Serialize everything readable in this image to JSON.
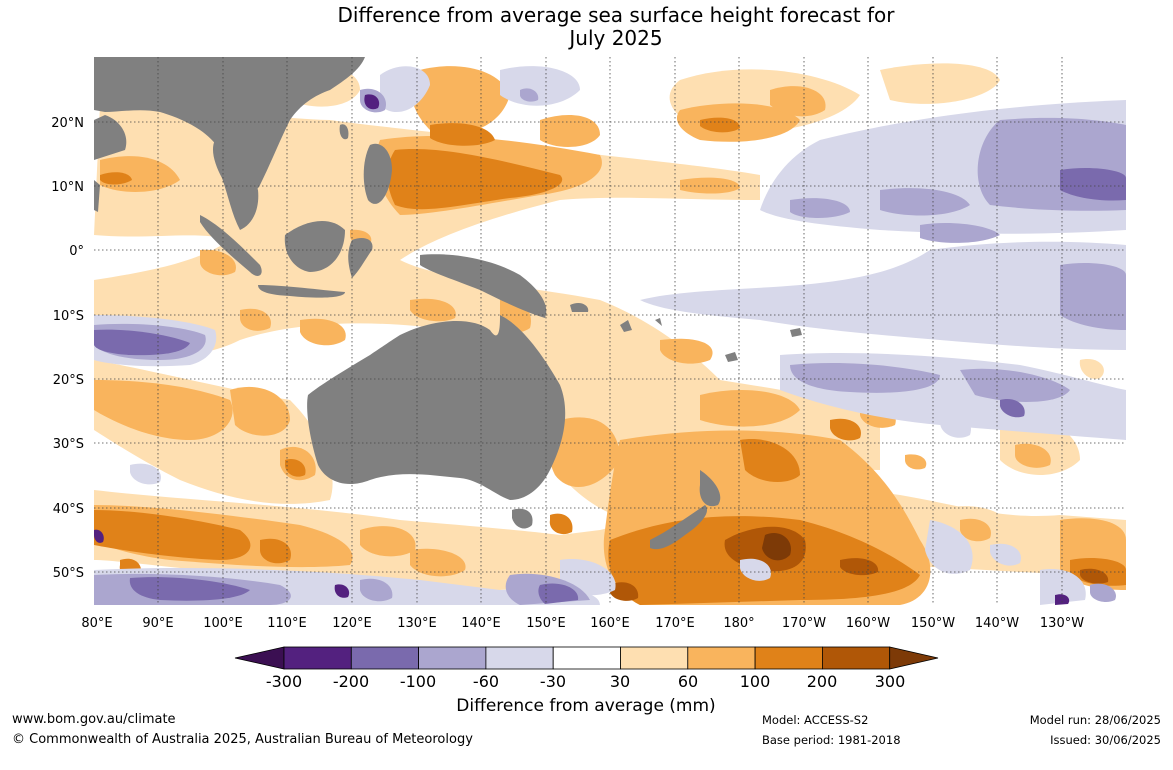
{
  "title": {
    "line1": "Difference from average sea surface height forecast for",
    "line2": "July 2025"
  },
  "map": {
    "lon_range": [
      "80°E",
      "130°W"
    ],
    "lat_range": [
      "55°S",
      "30°N"
    ],
    "lat_labels": [
      "20°N",
      "10°N",
      "0°",
      "10°S",
      "20°S",
      "30°S",
      "40°S",
      "50°S"
    ],
    "lon_labels": [
      "80°E",
      "90°E",
      "100°E",
      "110°E",
      "120°E",
      "130°E",
      "140°E",
      "150°E",
      "160°E",
      "170°E",
      "180°",
      "170°W",
      "160°W",
      "150°W",
      "140°W",
      "130°W"
    ],
    "land_color": "#808080"
  },
  "legend": {
    "title": "Difference from average (mm)",
    "tick_labels": [
      "-300",
      "-200",
      "-100",
      "-60",
      "-30",
      "30",
      "60",
      "100",
      "200",
      "300"
    ],
    "colors": [
      "#3b0f52",
      "#53217f",
      "#7a6aad",
      "#aba6cf",
      "#d7d8ea",
      "#ffffff",
      "#fedfb1",
      "#f9b45d",
      "#e08219",
      "#b05707",
      "#7d3a07"
    ]
  },
  "footer": {
    "url": "www.bom.gov.au/climate",
    "copyright": "© Commonwealth of Australia 2025, Australian Bureau of Meteorology",
    "model": "Model: ACCESS-S2",
    "base_period": "Base period: 1981-2018",
    "model_run": "Model run: 28/06/2025",
    "issued": "Issued: 30/06/2025"
  }
}
